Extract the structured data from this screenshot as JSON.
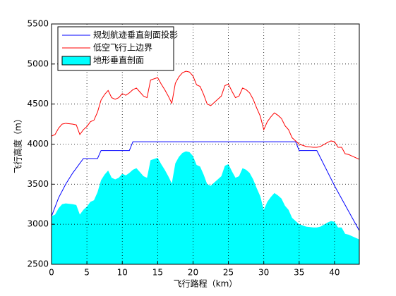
{
  "chart_data": {
    "type": "line",
    "xlabel": "飞行路程（km）",
    "ylabel": "飞行高度（m）",
    "xlim": [
      0,
      43.5
    ],
    "ylim": [
      2500,
      5500
    ],
    "xticks": [
      0,
      5,
      10,
      15,
      20,
      25,
      30,
      35,
      40
    ],
    "yticks": [
      2500,
      3000,
      3500,
      4000,
      4500,
      5000,
      5500
    ],
    "grid": true,
    "legend": "upper left",
    "series": [
      {
        "name": "规划航迹垂直剖面投影",
        "color": "#0000ff",
        "style": "line",
        "x": [
          0,
          1,
          2,
          3,
          4.5,
          6.5,
          7,
          11,
          11.5,
          34.5,
          35,
          37.5,
          40,
          43.5
        ],
        "values": [
          3100,
          3330,
          3500,
          3640,
          3820,
          3820,
          3920,
          3920,
          4030,
          4030,
          3920,
          3920,
          3480,
          2920
        ]
      },
      {
        "name": "低空飞行上边界",
        "color": "#ff0000",
        "style": "line",
        "x": [
          0,
          0.5,
          1,
          1.5,
          2,
          3,
          3.5,
          4,
          4.5,
          5,
          5.5,
          6,
          6.5,
          7,
          7.5,
          8,
          8.5,
          9,
          9.5,
          10,
          10.5,
          11,
          11.5,
          12,
          12.5,
          13,
          13.5,
          14,
          15,
          15.5,
          16,
          16.5,
          17,
          17.5,
          18,
          18.5,
          19,
          19.5,
          20,
          20.5,
          21,
          21.5,
          22,
          22.5,
          23,
          23.5,
          24,
          24.5,
          25,
          25.5,
          26,
          26.5,
          27,
          27.5,
          28,
          28.5,
          29,
          29.5,
          30,
          30.5,
          31,
          31.5,
          32,
          32.5,
          33,
          33.5,
          34,
          34.5,
          35,
          36,
          37,
          37.5,
          38,
          39,
          39.5,
          40,
          40.5,
          41,
          41.5,
          42,
          42.5,
          43,
          43.5
        ],
        "values": [
          4100,
          4120,
          4200,
          4250,
          4260,
          4250,
          4240,
          4120,
          4180,
          4220,
          4280,
          4300,
          4400,
          4550,
          4620,
          4670,
          4580,
          4560,
          4580,
          4630,
          4610,
          4640,
          4680,
          4700,
          4650,
          4600,
          4580,
          4800,
          4830,
          4750,
          4680,
          4600,
          4510,
          4760,
          4840,
          4890,
          4910,
          4900,
          4850,
          4740,
          4720,
          4620,
          4500,
          4480,
          4520,
          4560,
          4600,
          4730,
          4750,
          4660,
          4580,
          4600,
          4700,
          4680,
          4640,
          4560,
          4450,
          4350,
          4180,
          4280,
          4340,
          4390,
          4360,
          4320,
          4230,
          4180,
          4080,
          4040,
          4000,
          3970,
          3960,
          3960,
          3970,
          4020,
          4040,
          4030,
          3960,
          3960,
          3880,
          3870,
          3850,
          3830,
          3810
        ]
      },
      {
        "name": "地形垂直剖面",
        "color": "#00ffff",
        "style": "area",
        "x": [
          0,
          0.5,
          1,
          1.5,
          2,
          3,
          3.5,
          4,
          4.5,
          5,
          5.5,
          6,
          6.5,
          7,
          7.5,
          8,
          8.5,
          9,
          9.5,
          10,
          10.5,
          11,
          11.5,
          12,
          12.5,
          13,
          13.5,
          14,
          15,
          15.5,
          16,
          16.5,
          17,
          17.5,
          18,
          18.5,
          19,
          19.5,
          20,
          20.5,
          21,
          21.5,
          22,
          22.5,
          23,
          23.5,
          24,
          24.5,
          25,
          25.5,
          26,
          26.5,
          27,
          27.5,
          28,
          28.5,
          29,
          29.5,
          30,
          30.5,
          31,
          31.5,
          32,
          32.5,
          33,
          33.5,
          34,
          34.5,
          35,
          36,
          37,
          37.5,
          38,
          39,
          39.5,
          40,
          40.5,
          41,
          41.5,
          42,
          42.5,
          43,
          43.5
        ],
        "values": [
          3100,
          3120,
          3200,
          3250,
          3260,
          3250,
          3240,
          3120,
          3180,
          3220,
          3280,
          3300,
          3400,
          3550,
          3620,
          3670,
          3580,
          3560,
          3580,
          3630,
          3610,
          3640,
          3680,
          3700,
          3650,
          3600,
          3580,
          3800,
          3830,
          3750,
          3680,
          3600,
          3510,
          3760,
          3840,
          3890,
          3910,
          3900,
          3850,
          3740,
          3720,
          3620,
          3500,
          3480,
          3520,
          3560,
          3600,
          3730,
          3750,
          3660,
          3580,
          3600,
          3700,
          3680,
          3640,
          3560,
          3450,
          3350,
          3180,
          3280,
          3340,
          3390,
          3360,
          3320,
          3230,
          3180,
          3080,
          3040,
          3000,
          2970,
          2960,
          2960,
          2970,
          3020,
          3040,
          3030,
          2960,
          2960,
          2880,
          2870,
          2850,
          2830,
          2810
        ]
      }
    ]
  }
}
